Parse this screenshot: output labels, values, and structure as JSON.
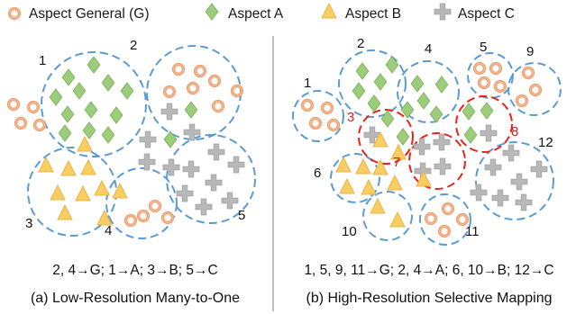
{
  "legend": [
    {
      "label": "Aspect General (G)",
      "shape": "ring",
      "color": "#f0a172"
    },
    {
      "label": "Aspect A",
      "shape": "diamond",
      "color": "#9ccc7c"
    },
    {
      "label": "Aspect B",
      "shape": "triangle",
      "color": "#f9cd62"
    },
    {
      "label": "Aspect C",
      "shape": "plus",
      "color": "#b8b8b8"
    }
  ],
  "colors": {
    "cluster_dashed": "#5b9bd5",
    "highlight_dashed": "#e8231b",
    "divider": "#a8a8a8"
  },
  "left_panel": {
    "cluster_labels": [
      "1",
      "2",
      "3",
      "4",
      "5"
    ],
    "mapping": "2, 4→G; 1→A; 3→B; 5→C",
    "caption": "(a) Low-Resolution Many-to-One"
  },
  "right_panel": {
    "cluster_labels": [
      "1",
      "2",
      "3",
      "4",
      "5",
      "6",
      "7",
      "8",
      "9",
      "10",
      "11",
      "12"
    ],
    "highlighted_clusters": [
      "3",
      "7",
      "8"
    ],
    "mapping": "1, 5, 9, 11→G; 2, 4→A; 6, 10→B; 12→C",
    "caption": "(b) High-Resolution Selective Mapping"
  }
}
